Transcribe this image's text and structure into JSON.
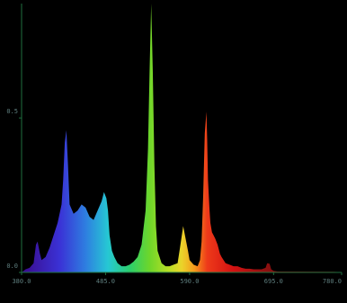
{
  "chart_data": {
    "type": "area",
    "title": "",
    "xlabel": "",
    "ylabel": "",
    "xlim": [
      380,
      780
    ],
    "ylim": [
      0,
      0.87
    ],
    "grid": false,
    "legend": "none",
    "x_ticks": [
      380,
      485,
      590,
      695,
      780
    ],
    "x_tick_labels": [
      "380.0",
      "485.0",
      "590.0",
      "695.0",
      "780.0"
    ],
    "y_ticks": [
      0,
      0.5
    ],
    "y_tick_labels": [
      "0.0",
      "0.5"
    ],
    "colors": {
      "background": "#000000",
      "axis": "#1f6f3f",
      "tick_text": "#5f7f7f"
    },
    "series": [
      {
        "x": [
          380,
          385,
          390,
          395,
          398,
          400,
          403,
          405,
          410,
          415,
          420,
          425,
          430,
          432,
          434,
          436,
          438,
          440,
          445,
          450,
          455,
          460,
          465,
          470,
          475,
          480,
          483,
          486,
          488,
          490,
          493,
          496,
          500,
          505,
          510,
          515,
          520,
          525,
          530,
          535,
          538,
          540,
          542,
          544,
          546,
          548,
          550,
          555,
          560,
          565,
          570,
          575,
          578,
          582,
          585,
          588,
          590,
          595,
          600,
          603,
          605,
          607,
          609,
          611,
          612,
          613,
          614,
          615,
          616,
          618,
          620,
          622,
          625,
          628,
          630,
          635,
          640,
          645,
          650,
          655,
          660,
          665,
          670,
          675,
          680,
          685,
          687,
          690,
          692,
          695,
          700,
          710,
          720,
          730,
          740,
          750,
          760,
          770,
          780
        ],
        "values": [
          0,
          0.01,
          0.015,
          0.03,
          0.09,
          0.1,
          0.06,
          0.04,
          0.05,
          0.08,
          0.12,
          0.16,
          0.22,
          0.3,
          0.42,
          0.46,
          0.35,
          0.22,
          0.19,
          0.2,
          0.22,
          0.21,
          0.18,
          0.17,
          0.2,
          0.23,
          0.26,
          0.24,
          0.2,
          0.12,
          0.07,
          0.05,
          0.03,
          0.02,
          0.02,
          0.025,
          0.035,
          0.05,
          0.09,
          0.2,
          0.4,
          0.65,
          0.87,
          0.65,
          0.35,
          0.15,
          0.07,
          0.03,
          0.02,
          0.02,
          0.025,
          0.03,
          0.08,
          0.15,
          0.11,
          0.07,
          0.04,
          0.025,
          0.02,
          0.04,
          0.1,
          0.25,
          0.45,
          0.52,
          0.43,
          0.3,
          0.25,
          0.2,
          0.16,
          0.13,
          0.12,
          0.11,
          0.09,
          0.06,
          0.05,
          0.03,
          0.025,
          0.02,
          0.02,
          0.015,
          0.012,
          0.012,
          0.01,
          0.01,
          0.01,
          0.015,
          0.03,
          0.028,
          0.01,
          0.005,
          0.003,
          0.003,
          0.003,
          0.003,
          0.003,
          0.003,
          0.003,
          0.003,
          0
        ]
      }
    ]
  }
}
